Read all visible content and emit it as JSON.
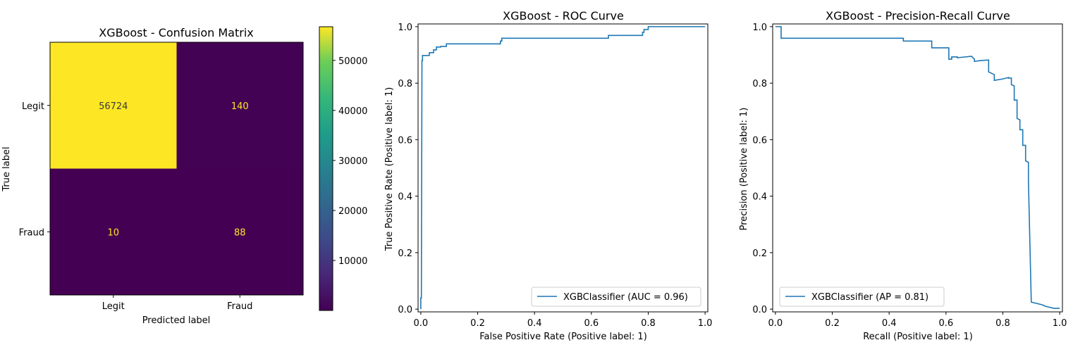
{
  "chart_data": [
    {
      "type": "heatmap",
      "title": "XGBoost - Confusion Matrix",
      "xlabel": "Predicted label",
      "ylabel": "True label",
      "x_categories": [
        "Legit",
        "Fraud"
      ],
      "y_categories": [
        "Legit",
        "Fraud"
      ],
      "matrix": [
        [
          56724,
          140
        ],
        [
          10,
          88
        ]
      ],
      "colormap": "viridis",
      "colorbar": {
        "range": [
          10,
          56724
        ],
        "ticks": [
          10000,
          20000,
          30000,
          40000,
          50000
        ],
        "tick_labels": [
          "10000",
          "20000",
          "30000",
          "40000",
          "50000"
        ]
      },
      "text_colors": {
        "light_cell": "#3a3a3a",
        "dark_cell": "#fde725"
      },
      "grid": false
    },
    {
      "type": "line",
      "title": "XGBoost - ROC Curve",
      "xlabel": "False Positive Rate (Positive label: 1)",
      "ylabel": "True Positive Rate (Positive label: 1)",
      "xlim": [
        0,
        1
      ],
      "ylim": [
        0,
        1
      ],
      "xticks": [
        "0.0",
        "0.2",
        "0.4",
        "0.6",
        "0.8",
        "1.0"
      ],
      "yticks": [
        "0.0",
        "0.2",
        "0.4",
        "0.6",
        "0.8",
        "1.0"
      ],
      "legend_position": "lower-right",
      "grid": false,
      "series": [
        {
          "name": "XGBClassifier (AUC = 0.96)",
          "color": "#1f77b4",
          "x": [
            0,
            0,
            0.002,
            0.004,
            0.004,
            0.006,
            0.006,
            0.03,
            0.03,
            0.045,
            0.045,
            0.055,
            0.055,
            0.07,
            0.07,
            0.09,
            0.09,
            0.125,
            0.125,
            0.28,
            0.28,
            0.285,
            0.285,
            0.66,
            0.66,
            0.78,
            0.78,
            0.785,
            0.785,
            0.8,
            0.8,
            1.0
          ],
          "y": [
            0,
            0.04,
            0.04,
            0.86,
            0.88,
            0.88,
            0.898,
            0.898,
            0.908,
            0.908,
            0.918,
            0.918,
            0.928,
            0.928,
            0.93,
            0.93,
            0.939,
            0.939,
            0.939,
            0.939,
            0.949,
            0.949,
            0.959,
            0.959,
            0.969,
            0.969,
            0.98,
            0.98,
            0.99,
            0.99,
            1.0,
            1.0
          ]
        }
      ]
    },
    {
      "type": "line",
      "title": "XGBoost - Precision-Recall Curve",
      "xlabel": "Recall (Positive label: 1)",
      "ylabel": "Precision (Positive label: 1)",
      "xlim": [
        0,
        1
      ],
      "ylim": [
        0,
        1
      ],
      "xticks": [
        "0.0",
        "0.2",
        "0.4",
        "0.6",
        "0.8",
        "1.0"
      ],
      "yticks": [
        "0.0",
        "0.2",
        "0.4",
        "0.6",
        "0.8",
        "1.0"
      ],
      "legend_position": "lower-left",
      "grid": false,
      "series": [
        {
          "name": "XGBClassifier (AP = 0.81)",
          "color": "#1f77b4",
          "x": [
            0,
            0.02,
            0.02,
            0.45,
            0.45,
            0.55,
            0.55,
            0.61,
            0.61,
            0.62,
            0.62,
            0.64,
            0.64,
            0.69,
            0.7,
            0.7,
            0.72,
            0.75,
            0.75,
            0.76,
            0.77,
            0.77,
            0.8,
            0.82,
            0.82,
            0.83,
            0.83,
            0.84,
            0.84,
            0.85,
            0.85,
            0.86,
            0.86,
            0.87,
            0.87,
            0.88,
            0.88,
            0.89,
            0.89,
            0.9,
            0.92,
            0.94,
            0.95,
            0.98,
            1.0
          ],
          "y": [
            1.0,
            1.0,
            0.959,
            0.959,
            0.949,
            0.949,
            0.925,
            0.925,
            0.885,
            0.885,
            0.893,
            0.893,
            0.89,
            0.895,
            0.885,
            0.877,
            0.88,
            0.882,
            0.84,
            0.835,
            0.83,
            0.81,
            0.815,
            0.82,
            0.818,
            0.818,
            0.795,
            0.79,
            0.74,
            0.74,
            0.675,
            0.67,
            0.635,
            0.635,
            0.58,
            0.58,
            0.525,
            0.52,
            0.455,
            0.025,
            0.02,
            0.015,
            0.01,
            0.003,
            0.003
          ]
        }
      ]
    }
  ]
}
